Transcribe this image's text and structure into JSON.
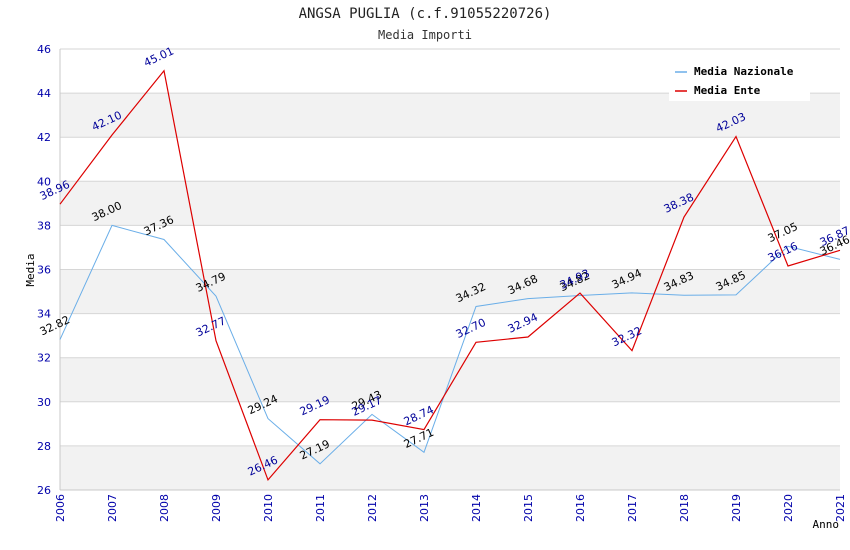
{
  "chart_data": {
    "type": "line",
    "title": "ANGSA PUGLIA (c.f.91055220726)",
    "subtitle": "Media Importi",
    "xlabel": "Anno",
    "ylabel": "Media",
    "ylim": [
      26,
      46
    ],
    "y_ticks": [
      "26",
      "28",
      "30",
      "32",
      "34",
      "36",
      "38",
      "40",
      "42",
      "44",
      "46"
    ],
    "categories": [
      "2006",
      "2007",
      "2008",
      "2009",
      "2010",
      "2011",
      "2012",
      "2013",
      "2014",
      "2015",
      "2016",
      "2017",
      "2018",
      "2019",
      "2020",
      "2021"
    ],
    "grid": true,
    "legend_position": "top-right",
    "series": [
      {
        "name": "Media Nazionale",
        "color": "#6aaee8",
        "label_color": "#000000",
        "values": [
          32.82,
          38.0,
          37.36,
          34.79,
          29.24,
          27.19,
          29.43,
          27.71,
          34.32,
          34.68,
          34.82,
          34.94,
          34.83,
          34.85,
          37.05,
          36.46
        ],
        "labels": [
          "32.82",
          "38.00",
          "37.36",
          "34.79",
          "29.24",
          "27.19",
          "29.43",
          "27.71",
          "34.32",
          "34.68",
          "34.82",
          "34.94",
          "34.83",
          "34.85",
          "37.05",
          "36.46"
        ]
      },
      {
        "name": "Media Ente",
        "color": "#dd0000",
        "label_color": "#000099",
        "values": [
          38.96,
          42.1,
          45.01,
          32.77,
          26.46,
          29.19,
          29.17,
          28.74,
          32.7,
          32.94,
          34.93,
          32.32,
          38.38,
          42.03,
          36.16,
          36.87
        ],
        "labels": [
          "38.96",
          "42.10",
          "45.01",
          "32.77",
          "26.46",
          "29.19",
          "29.17",
          "28.74",
          "32.70",
          "32.94",
          "34.93",
          "32.32",
          "38.38",
          "42.03",
          "36.16",
          "36.87"
        ]
      }
    ]
  }
}
